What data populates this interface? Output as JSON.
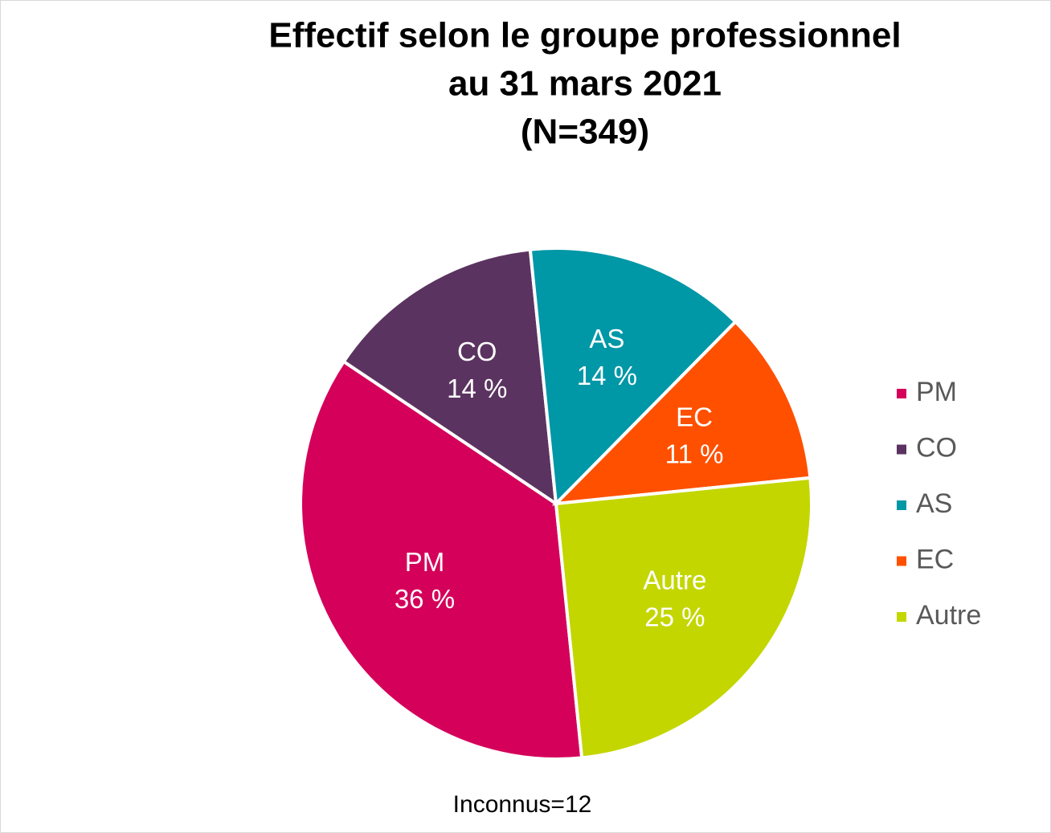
{
  "chart_data": {
    "type": "pie",
    "title": [
      "Effectif selon le groupe professionnel",
      "au 31 mars 2021",
      "(N=349)"
    ],
    "categories": [
      "PM",
      "CO",
      "AS",
      "EC",
      "Autre"
    ],
    "values": [
      36,
      14,
      14,
      11,
      25
    ],
    "value_labels": [
      "36 %",
      "14 %",
      "14 %",
      "11 %",
      "25 %"
    ],
    "colors": [
      "#d4005a",
      "#5b3360",
      "#0097a6",
      "#ff5000",
      "#c3d600"
    ],
    "legend": "right",
    "annotation": "Inconnus=12"
  }
}
